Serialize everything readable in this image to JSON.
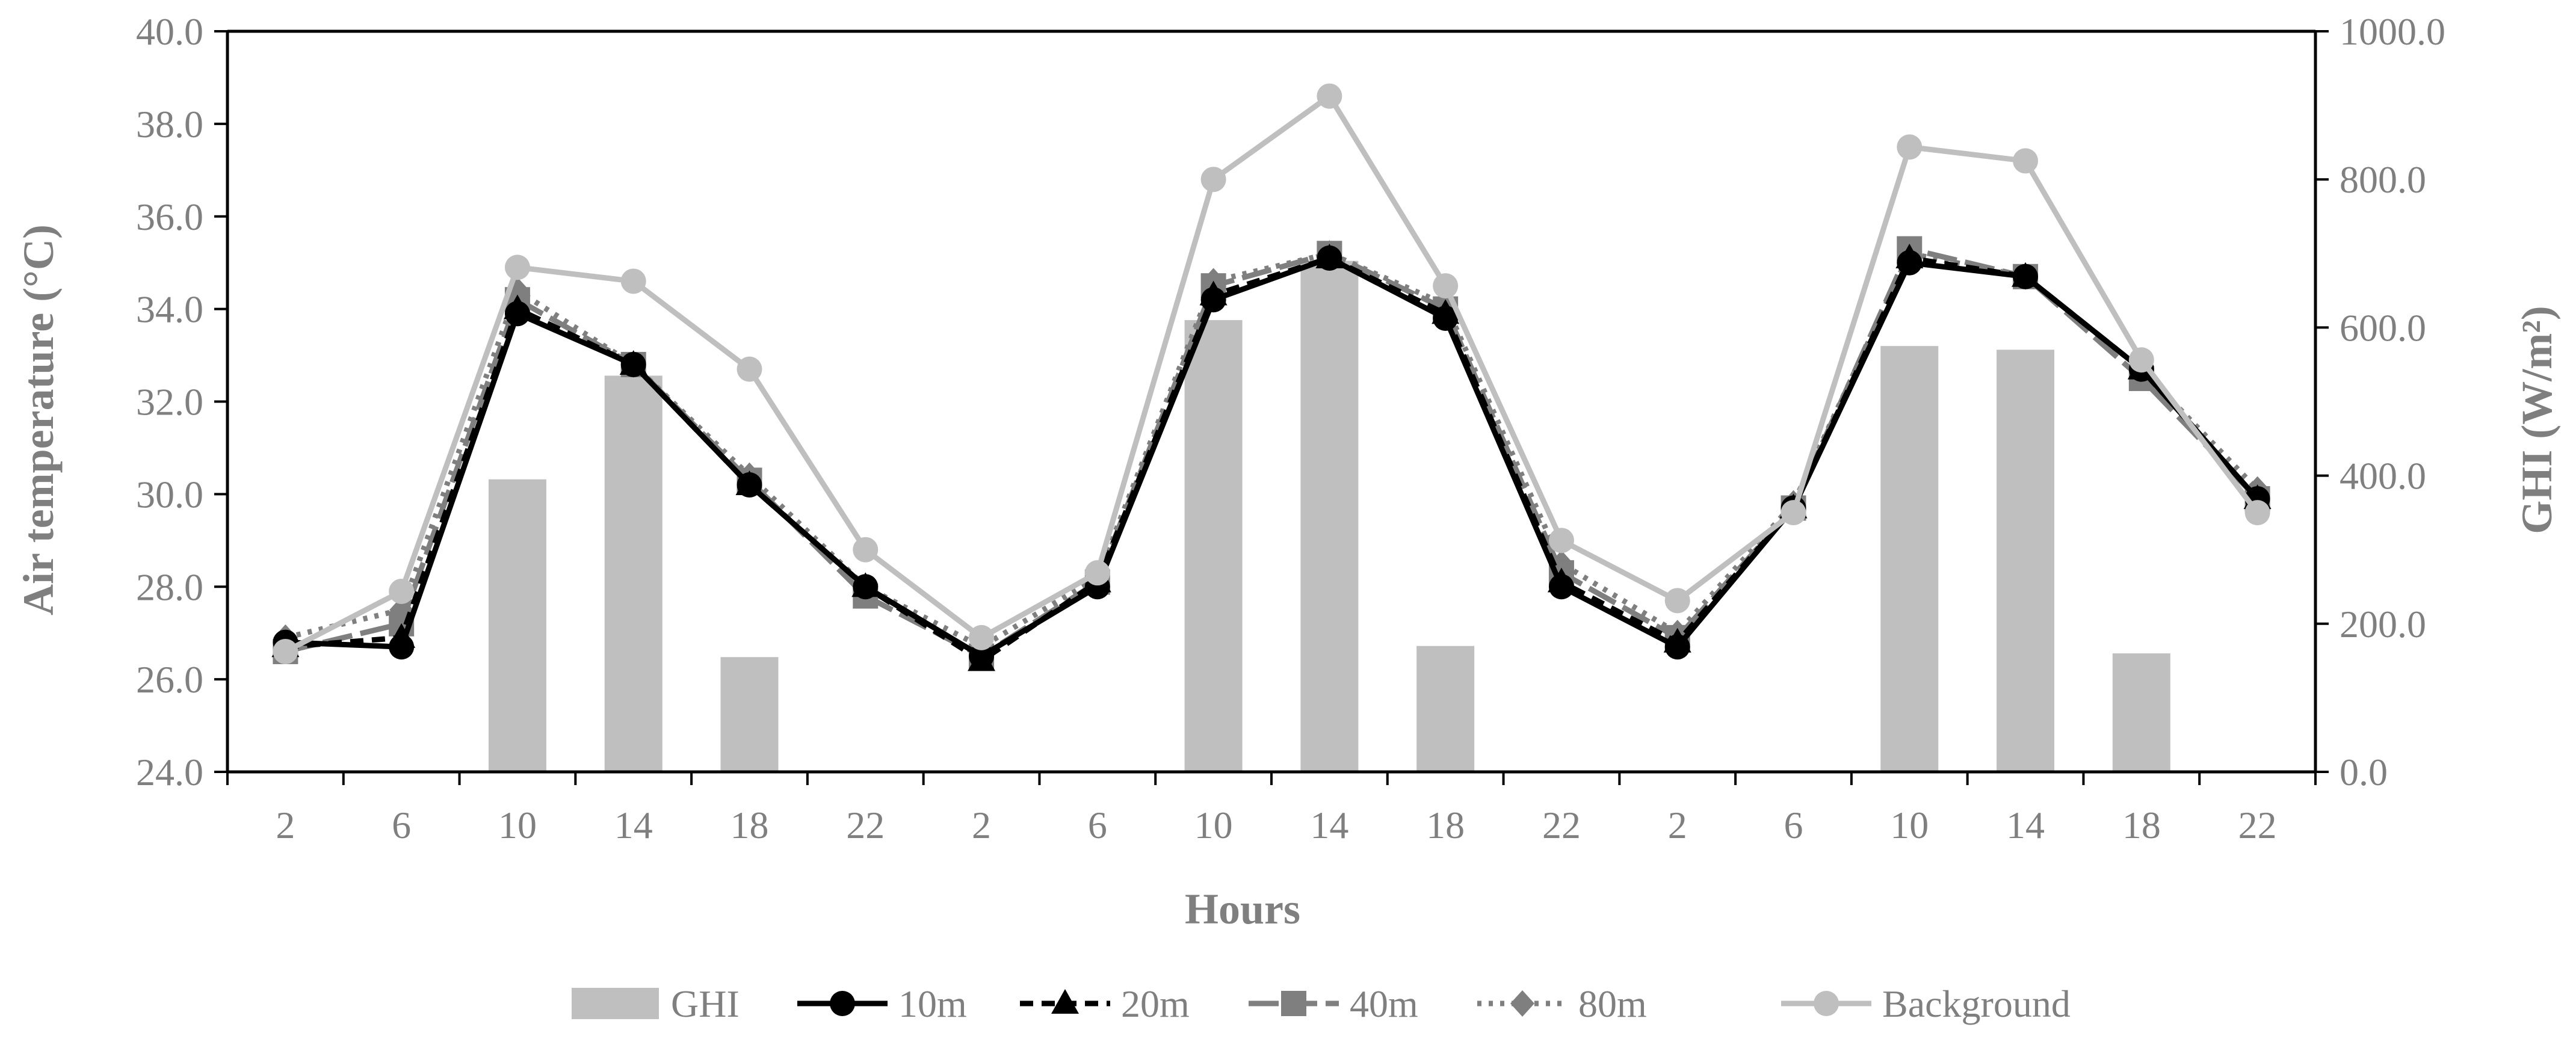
{
  "chart_data": {
    "type": "bar+line",
    "xlabel": "Hours",
    "ylabel": "Air temperature (°C)",
    "y2label": "GHI (W/m²)",
    "ylim": [
      24,
      40
    ],
    "y2lim": [
      0,
      1000
    ],
    "yticks": [
      "24.0",
      "26.0",
      "28.0",
      "30.0",
      "32.0",
      "34.0",
      "36.0",
      "38.0",
      "40.0"
    ],
    "y2ticks": [
      "0.0",
      "200.0",
      "400.0",
      "600.0",
      "800.0",
      "1000.0"
    ],
    "categories": [
      "2",
      "6",
      "10",
      "14",
      "18",
      "22",
      "2",
      "6",
      "10",
      "14",
      "18",
      "22",
      "2",
      "6",
      "10",
      "14",
      "18",
      "22"
    ],
    "bars": {
      "name": "GHI",
      "axis": "right",
      "color": "#bfbfbf",
      "values": [
        null,
        null,
        395,
        535,
        155,
        null,
        null,
        null,
        610,
        690,
        170,
        null,
        null,
        null,
        575,
        570,
        160,
        null
      ]
    },
    "series": [
      {
        "name": "10m",
        "color": "#000000",
        "dash": "",
        "marker": "circle",
        "values": [
          26.8,
          26.7,
          33.9,
          32.8,
          30.2,
          28.0,
          26.5,
          28.0,
          34.2,
          35.1,
          33.8,
          28.0,
          26.7,
          29.7,
          35.0,
          34.7,
          32.7,
          29.9
        ]
      },
      {
        "name": "20m",
        "color": "#000000",
        "dash": "22,14",
        "marker": "triangle",
        "values": [
          26.7,
          26.9,
          34.0,
          32.8,
          30.2,
          28.0,
          26.4,
          28.1,
          34.3,
          35.1,
          33.9,
          28.1,
          26.8,
          29.7,
          35.1,
          34.7,
          32.7,
          29.9
        ]
      },
      {
        "name": "40m",
        "color": "#7f7f7f",
        "dash": "50,14",
        "marker": "square",
        "values": [
          26.6,
          27.2,
          34.2,
          32.8,
          30.3,
          27.8,
          26.5,
          28.1,
          34.5,
          35.2,
          34.0,
          28.3,
          26.9,
          29.7,
          35.3,
          34.7,
          32.5,
          29.9
        ]
      },
      {
        "name": "80m",
        "color": "#7f7f7f",
        "dash": "7,12",
        "marker": "diamond",
        "values": [
          26.9,
          27.5,
          34.4,
          32.8,
          30.4,
          28.0,
          26.7,
          28.2,
          34.6,
          35.2,
          34.1,
          28.5,
          27.0,
          29.8,
          35.2,
          34.7,
          32.7,
          30.1
        ]
      },
      {
        "name": "Background",
        "color": "#bfbfbf",
        "dash": "",
        "marker": "circle",
        "values": [
          26.6,
          27.9,
          34.9,
          34.6,
          32.7,
          28.8,
          26.9,
          28.3,
          36.8,
          38.6,
          34.5,
          29.0,
          27.7,
          29.6,
          37.5,
          37.2,
          32.9,
          29.6
        ]
      }
    ],
    "legend_position": "bottom"
  }
}
